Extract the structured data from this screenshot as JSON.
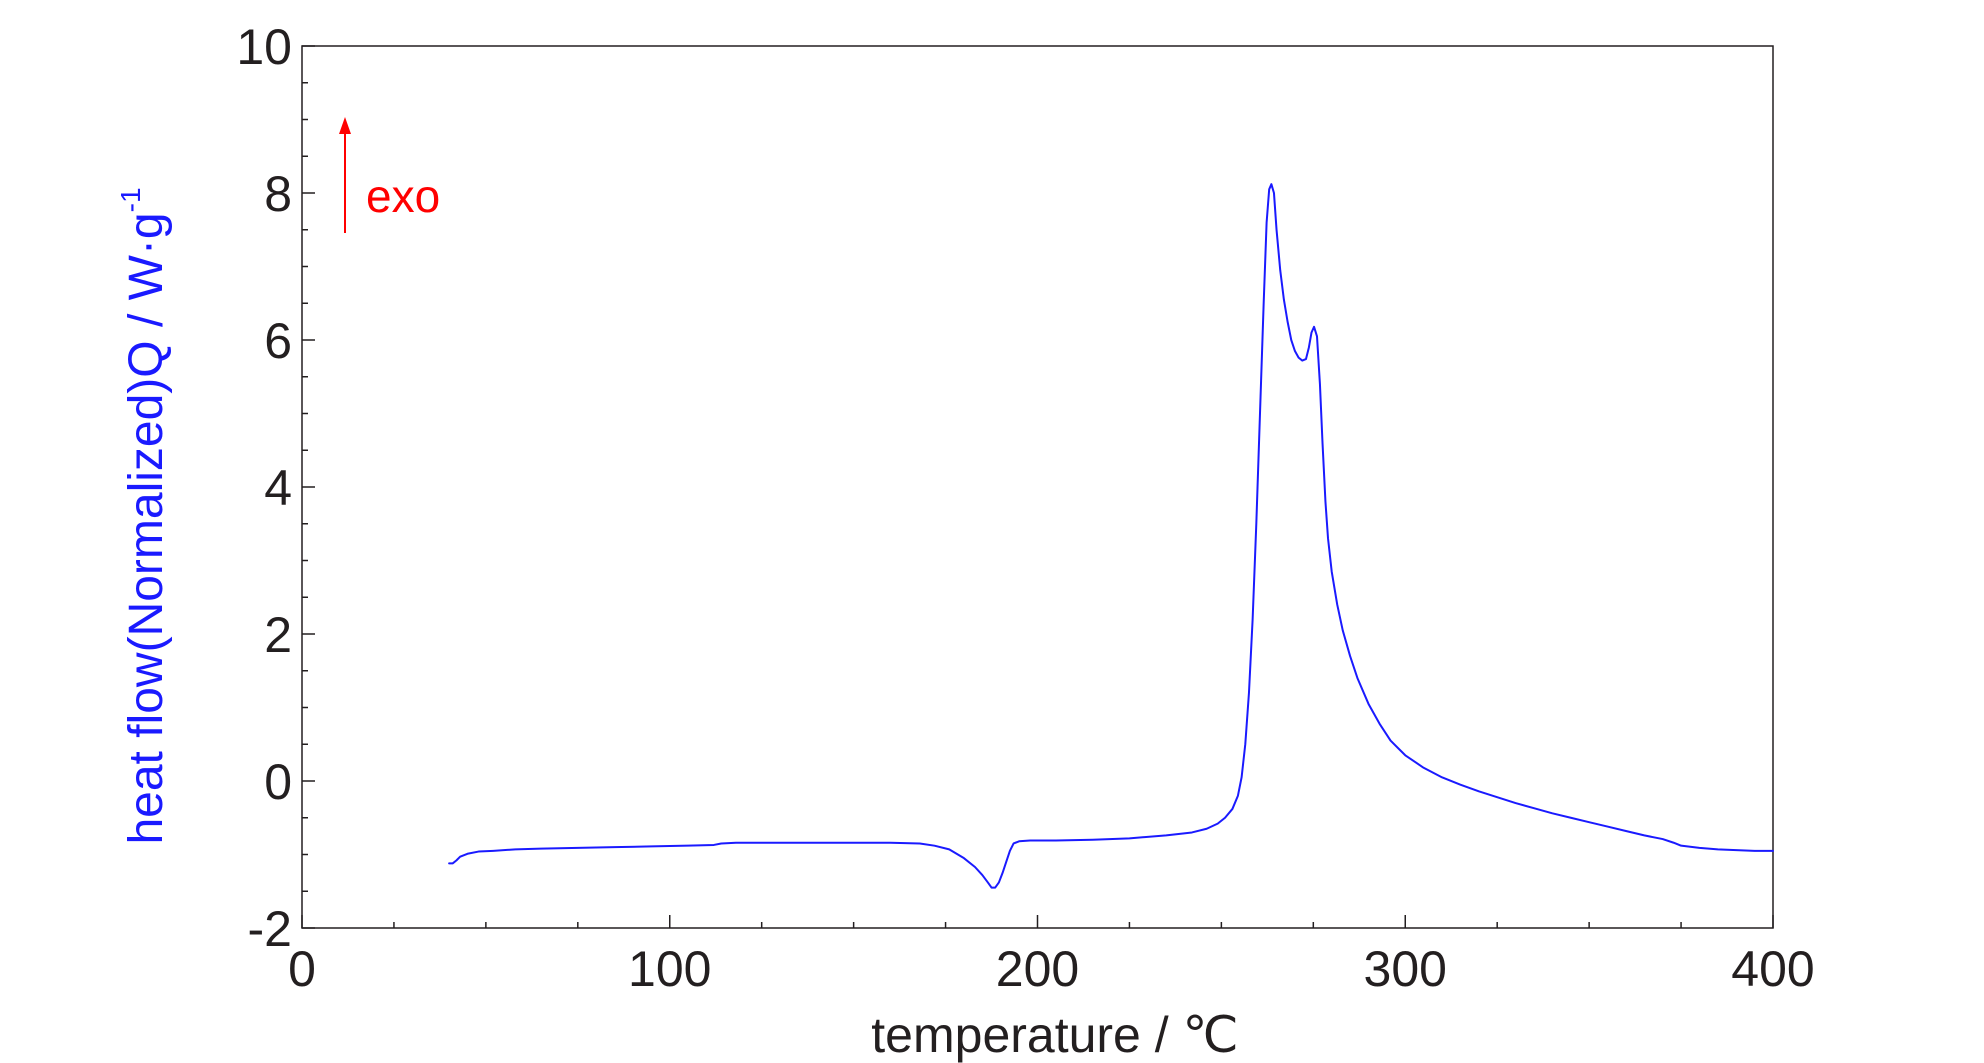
{
  "chart_data": {
    "type": "line",
    "title": "",
    "xlabel": "temperature / ℃",
    "ylabel_main": "heat flow(Normalized)Q / W·g",
    "ylabel_sup": "-1",
    "xlim": [
      0,
      400
    ],
    "ylim": [
      -2,
      10
    ],
    "x_major_ticks": [
      0,
      100,
      200,
      300,
      400
    ],
    "x_tick_labels": [
      "0",
      "100",
      "200",
      "300",
      "400"
    ],
    "x_minor_step": 25,
    "y_major_ticks": [
      -2,
      0,
      2,
      4,
      6,
      8,
      10
    ],
    "y_tick_labels": [
      "-2",
      "0",
      "2",
      "4",
      "6",
      "8",
      "10"
    ],
    "y_minor_step": 0.5,
    "grid": false,
    "annotation": {
      "text": "exo",
      "arrow": "up",
      "color": "#ff0000"
    },
    "colors": {
      "axis": "#231f20",
      "ylabel": "#1a1aff",
      "line": "#1a1aff"
    },
    "series": [
      {
        "values": [
          [
            40.0,
            -1.12
          ],
          [
            41.0,
            -1.12
          ],
          [
            42.0,
            -1.08
          ],
          [
            43.0,
            -1.03
          ],
          [
            45.0,
            -0.99
          ],
          [
            48.0,
            -0.96
          ],
          [
            52.0,
            -0.95
          ],
          [
            58.0,
            -0.93
          ],
          [
            65.0,
            -0.92
          ],
          [
            75.0,
            -0.91
          ],
          [
            85.0,
            -0.9
          ],
          [
            95.0,
            -0.89
          ],
          [
            105.0,
            -0.88
          ],
          [
            112.0,
            -0.87
          ],
          [
            114.0,
            -0.85
          ],
          [
            118.0,
            -0.84
          ],
          [
            130.0,
            -0.84
          ],
          [
            145.0,
            -0.84
          ],
          [
            160.0,
            -0.84
          ],
          [
            168.0,
            -0.85
          ],
          [
            172.0,
            -0.88
          ],
          [
            176.0,
            -0.93
          ],
          [
            180.0,
            -1.05
          ],
          [
            183.0,
            -1.17
          ],
          [
            185.0,
            -1.28
          ],
          [
            186.5,
            -1.38
          ],
          [
            187.5,
            -1.45
          ],
          [
            188.5,
            -1.45
          ],
          [
            189.5,
            -1.38
          ],
          [
            190.5,
            -1.25
          ],
          [
            191.5,
            -1.1
          ],
          [
            192.5,
            -0.95
          ],
          [
            193.5,
            -0.85
          ],
          [
            195.0,
            -0.82
          ],
          [
            198.0,
            -0.81
          ],
          [
            205.0,
            -0.81
          ],
          [
            215.0,
            -0.8
          ],
          [
            225.0,
            -0.78
          ],
          [
            235.0,
            -0.74
          ],
          [
            242.0,
            -0.7
          ],
          [
            246.0,
            -0.65
          ],
          [
            249.0,
            -0.58
          ],
          [
            251.0,
            -0.5
          ],
          [
            253.0,
            -0.38
          ],
          [
            254.5,
            -0.2
          ],
          [
            255.5,
            0.05
          ],
          [
            256.5,
            0.5
          ],
          [
            257.5,
            1.2
          ],
          [
            258.5,
            2.2
          ],
          [
            259.5,
            3.5
          ],
          [
            260.5,
            5.0
          ],
          [
            261.5,
            6.5
          ],
          [
            262.3,
            7.6
          ],
          [
            263.0,
            8.05
          ],
          [
            263.6,
            8.12
          ],
          [
            264.3,
            8.0
          ],
          [
            265.0,
            7.5
          ],
          [
            266.0,
            6.95
          ],
          [
            267.0,
            6.55
          ],
          [
            268.0,
            6.25
          ],
          [
            269.0,
            6.0
          ],
          [
            270.0,
            5.85
          ],
          [
            271.0,
            5.76
          ],
          [
            272.0,
            5.72
          ],
          [
            273.0,
            5.74
          ],
          [
            273.8,
            5.9
          ],
          [
            274.5,
            6.1
          ],
          [
            275.2,
            6.18
          ],
          [
            276.0,
            6.05
          ],
          [
            276.8,
            5.4
          ],
          [
            277.5,
            4.6
          ],
          [
            278.3,
            3.8
          ],
          [
            279.0,
            3.3
          ],
          [
            280.0,
            2.85
          ],
          [
            281.5,
            2.4
          ],
          [
            283.0,
            2.05
          ],
          [
            285.0,
            1.7
          ],
          [
            287.0,
            1.4
          ],
          [
            290.0,
            1.05
          ],
          [
            293.0,
            0.78
          ],
          [
            296.0,
            0.55
          ],
          [
            300.0,
            0.35
          ],
          [
            305.0,
            0.18
          ],
          [
            310.0,
            0.05
          ],
          [
            315.0,
            -0.05
          ],
          [
            320.0,
            -0.14
          ],
          [
            325.0,
            -0.22
          ],
          [
            330.0,
            -0.3
          ],
          [
            335.0,
            -0.37
          ],
          [
            340.0,
            -0.44
          ],
          [
            345.0,
            -0.5
          ],
          [
            350.0,
            -0.56
          ],
          [
            355.0,
            -0.62
          ],
          [
            360.0,
            -0.68
          ],
          [
            365.0,
            -0.74
          ],
          [
            370.0,
            -0.79
          ],
          [
            373.0,
            -0.84
          ],
          [
            375.0,
            -0.88
          ],
          [
            380.0,
            -0.91
          ],
          [
            385.0,
            -0.93
          ],
          [
            390.0,
            -0.94
          ],
          [
            395.0,
            -0.95
          ],
          [
            400.0,
            -0.95
          ]
        ]
      }
    ]
  }
}
